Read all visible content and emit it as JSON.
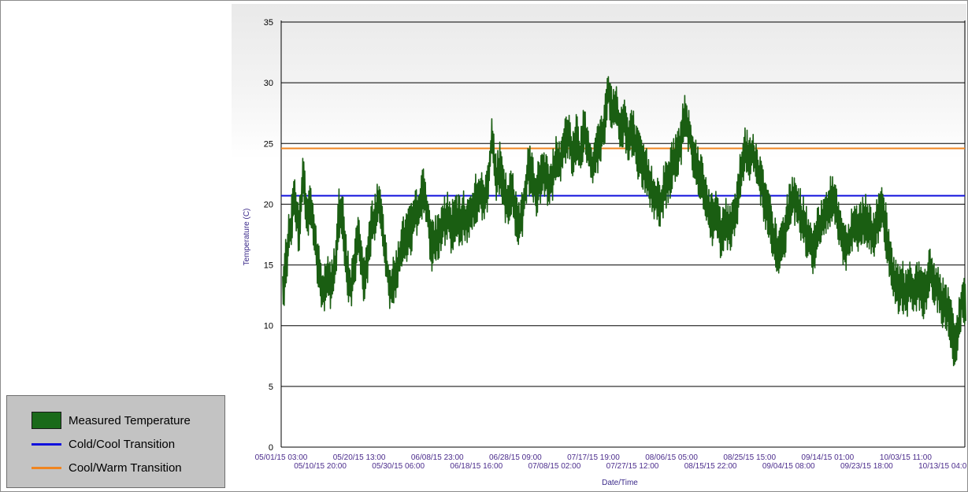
{
  "legend": {
    "items": [
      {
        "label": "Measured Temperature",
        "color": "#1a6a1a",
        "kind": "box"
      },
      {
        "label": "Cold/Cool Transition",
        "color": "#1111dd",
        "kind": "line"
      },
      {
        "label": "Cool/Warm Transition",
        "color": "#f08520",
        "kind": "line"
      }
    ]
  },
  "chart_data": {
    "type": "line",
    "title": "",
    "xlabel": "Date/Time",
    "ylabel": "Temperature (C)",
    "ylim": [
      0,
      35
    ],
    "yticks": [
      0,
      5,
      10,
      15,
      20,
      25,
      30,
      35
    ],
    "xlim": [
      "05/01/15 03:00",
      "10/18/15 04:00"
    ],
    "grid": "horizontal",
    "xticks_upper": [
      "05/01/15 03:00",
      "05/20/15 13:00",
      "06/08/15 23:00",
      "06/28/15 09:00",
      "07/17/15 19:00",
      "08/06/15 05:00",
      "08/25/15 15:00",
      "09/14/15 01:00",
      "10/03/15 11:00"
    ],
    "xticks_lower": [
      "05/10/15 20:00",
      "05/30/15 06:00",
      "06/18/15 16:00",
      "07/08/15 02:00",
      "07/27/15 12:00",
      "08/15/15 22:00",
      "09/04/15 08:00",
      "09/23/15 18:00",
      "10/13/15 04:00"
    ],
    "reference_lines": [
      {
        "name": "Cold/Cool Transition",
        "y": 20.7,
        "color": "#1111dd"
      },
      {
        "name": "Cool/Warm Transition",
        "y": 24.6,
        "color": "#f08520"
      }
    ],
    "series": [
      {
        "name": "Measured Temperature",
        "color": "#1a5e12",
        "points": [
          [
            "05/01/15",
            12.5
          ],
          [
            "05/02/15",
            16.0
          ],
          [
            "05/03/15",
            18.0
          ],
          [
            "05/04/15",
            21.0
          ],
          [
            "05/05/15",
            17.5
          ],
          [
            "05/06/15",
            22.5
          ],
          [
            "05/07/15",
            19.0
          ],
          [
            "05/08/15",
            20.0
          ],
          [
            "05/09/15",
            17.0
          ],
          [
            "05/10/15",
            14.5
          ],
          [
            "05/11/15",
            12.5
          ],
          [
            "05/12/15",
            14.0
          ],
          [
            "05/13/15",
            13.0
          ],
          [
            "05/14/15",
            15.0
          ],
          [
            "05/15/15",
            19.5
          ],
          [
            "05/16/15",
            18.5
          ],
          [
            "05/17/15",
            14.5
          ],
          [
            "05/18/15",
            13.0
          ],
          [
            "05/19/15",
            15.5
          ],
          [
            "05/20/15",
            17.5
          ],
          [
            "05/21/15",
            14.0
          ],
          [
            "05/22/15",
            15.0
          ],
          [
            "05/23/15",
            18.0
          ],
          [
            "05/24/15",
            19.0
          ],
          [
            "05/25/15",
            20.5
          ],
          [
            "05/26/15",
            17.0
          ],
          [
            "05/27/15",
            14.5
          ],
          [
            "05/28/15",
            13.0
          ],
          [
            "05/29/15",
            14.0
          ],
          [
            "05/30/15",
            15.5
          ],
          [
            "05/31/15",
            17.0
          ],
          [
            "06/01/15",
            17.5
          ],
          [
            "06/02/15",
            18.0
          ],
          [
            "06/03/15",
            19.0
          ],
          [
            "06/04/15",
            20.0
          ],
          [
            "06/05/15",
            21.0
          ],
          [
            "06/06/15",
            19.5
          ],
          [
            "06/07/15",
            16.5
          ],
          [
            "06/08/15",
            17.0
          ],
          [
            "06/09/15",
            17.5
          ],
          [
            "06/10/15",
            18.5
          ],
          [
            "06/11/15",
            19.0
          ],
          [
            "06/12/15",
            18.0
          ],
          [
            "06/13/15",
            19.0
          ],
          [
            "06/14/15",
            18.5
          ],
          [
            "06/15/15",
            19.0
          ],
          [
            "06/16/15",
            18.5
          ],
          [
            "06/17/15",
            19.5
          ],
          [
            "06/18/15",
            20.5
          ],
          [
            "06/19/15",
            21.0
          ],
          [
            "06/20/15",
            20.0
          ],
          [
            "06/21/15",
            21.5
          ],
          [
            "06/22/15",
            25.5
          ],
          [
            "06/23/15",
            22.0
          ],
          [
            "06/24/15",
            23.0
          ],
          [
            "06/25/15",
            21.0
          ],
          [
            "06/26/15",
            20.0
          ],
          [
            "06/27/15",
            21.0
          ],
          [
            "06/28/15",
            19.0
          ],
          [
            "06/29/15",
            18.5
          ],
          [
            "06/30/15",
            20.0
          ],
          [
            "07/01/15",
            23.0
          ],
          [
            "07/02/15",
            22.5
          ],
          [
            "07/03/15",
            21.0
          ],
          [
            "07/04/15",
            22.0
          ],
          [
            "07/05/15",
            23.0
          ],
          [
            "07/06/15",
            21.5
          ],
          [
            "07/07/15",
            22.0
          ],
          [
            "07/08/15",
            24.0
          ],
          [
            "07/09/15",
            23.5
          ],
          [
            "07/10/15",
            25.0
          ],
          [
            "07/11/15",
            26.0
          ],
          [
            "07/12/15",
            24.0
          ],
          [
            "07/13/15",
            25.5
          ],
          [
            "07/14/15",
            24.0
          ],
          [
            "07/15/15",
            26.5
          ],
          [
            "07/16/15",
            24.5
          ],
          [
            "07/17/15",
            23.0
          ],
          [
            "07/18/15",
            24.5
          ],
          [
            "07/19/15",
            25.0
          ],
          [
            "07/20/15",
            26.5
          ],
          [
            "07/21/15",
            29.5
          ],
          [
            "07/22/15",
            27.5
          ],
          [
            "07/23/15",
            28.0
          ],
          [
            "07/24/15",
            26.0
          ],
          [
            "07/25/15",
            27.0
          ],
          [
            "07/26/15",
            25.0
          ],
          [
            "07/27/15",
            26.0
          ],
          [
            "07/28/15",
            24.5
          ],
          [
            "07/29/15",
            23.5
          ],
          [
            "07/30/15",
            23.0
          ],
          [
            "07/31/15",
            22.0
          ],
          [
            "08/01/15",
            21.0
          ],
          [
            "08/02/15",
            20.5
          ],
          [
            "08/03/15",
            20.0
          ],
          [
            "08/04/15",
            21.5
          ],
          [
            "08/05/15",
            22.0
          ],
          [
            "08/06/15",
            23.5
          ],
          [
            "08/07/15",
            24.0
          ],
          [
            "08/08/15",
            25.0
          ],
          [
            "08/09/15",
            27.5
          ],
          [
            "08/10/15",
            26.0
          ],
          [
            "08/11/15",
            24.5
          ],
          [
            "08/12/15",
            23.0
          ],
          [
            "08/13/15",
            22.5
          ],
          [
            "08/14/15",
            21.0
          ],
          [
            "08/15/15",
            19.5
          ],
          [
            "08/16/15",
            18.5
          ],
          [
            "08/17/15",
            19.5
          ],
          [
            "08/18/15",
            17.5
          ],
          [
            "08/19/15",
            18.5
          ],
          [
            "08/20/15",
            18.0
          ],
          [
            "08/21/15",
            19.0
          ],
          [
            "08/22/15",
            20.0
          ],
          [
            "08/23/15",
            23.0
          ],
          [
            "08/24/15",
            24.5
          ],
          [
            "08/25/15",
            23.5
          ],
          [
            "08/26/15",
            24.5
          ],
          [
            "08/27/15",
            22.5
          ],
          [
            "08/28/15",
            22.0
          ],
          [
            "08/29/15",
            20.0
          ],
          [
            "08/30/15",
            19.0
          ],
          [
            "08/31/15",
            17.5
          ],
          [
            "09/01/15",
            16.0
          ],
          [
            "09/02/15",
            16.5
          ],
          [
            "09/03/15",
            18.0
          ],
          [
            "09/04/15",
            19.5
          ],
          [
            "09/05/15",
            20.5
          ],
          [
            "09/06/15",
            20.0
          ],
          [
            "09/07/15",
            19.0
          ],
          [
            "09/08/15",
            18.0
          ],
          [
            "09/09/15",
            17.0
          ],
          [
            "09/10/15",
            16.0
          ],
          [
            "09/11/15",
            17.5
          ],
          [
            "09/12/15",
            18.5
          ],
          [
            "09/13/15",
            19.5
          ],
          [
            "09/14/15",
            20.0
          ],
          [
            "09/15/15",
            20.5
          ],
          [
            "09/16/15",
            19.0
          ],
          [
            "09/17/15",
            17.5
          ],
          [
            "09/18/15",
            16.5
          ],
          [
            "09/19/15",
            17.0
          ],
          [
            "09/20/15",
            18.5
          ],
          [
            "09/21/15",
            18.0
          ],
          [
            "09/22/15",
            18.5
          ],
          [
            "09/23/15",
            19.0
          ],
          [
            "09/24/15",
            18.0
          ],
          [
            "09/25/15",
            17.5
          ],
          [
            "09/26/15",
            18.5
          ],
          [
            "09/27/15",
            19.5
          ],
          [
            "09/28/15",
            18.0
          ],
          [
            "09/29/15",
            15.5
          ],
          [
            "09/30/15",
            14.0
          ],
          [
            "10/01/15",
            13.0
          ],
          [
            "10/02/15",
            13.5
          ],
          [
            "10/03/15",
            12.5
          ],
          [
            "10/04/15",
            13.5
          ],
          [
            "10/05/15",
            13.0
          ],
          [
            "10/06/15",
            13.5
          ],
          [
            "10/07/15",
            12.5
          ],
          [
            "10/08/15",
            13.0
          ],
          [
            "10/09/15",
            14.5
          ],
          [
            "10/10/15",
            13.5
          ],
          [
            "10/11/15",
            13.0
          ],
          [
            "10/12/15",
            12.0
          ],
          [
            "10/13/15",
            11.5
          ],
          [
            "10/14/15",
            10.5
          ],
          [
            "10/15/15",
            8.5
          ],
          [
            "10/16/15",
            9.5
          ],
          [
            "10/17/15",
            12.5
          ],
          [
            "10/18/15",
            11.5
          ]
        ]
      }
    ]
  }
}
